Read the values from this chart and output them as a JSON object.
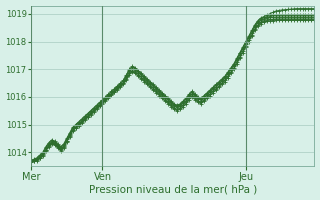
{
  "xlabel": "Pression niveau de la mer( hPa )",
  "bg_color": "#d8f0e8",
  "grid_color": "#a8ccc0",
  "line_color": "#2d6e2d",
  "tick_color": "#2d6e2d",
  "label_color": "#2d6e2d",
  "vline_color": "#5a8a6a",
  "ylim": [
    1013.5,
    1019.3
  ],
  "yticks": [
    1014,
    1015,
    1016,
    1017,
    1018,
    1019
  ],
  "day_labels": [
    "Mer",
    "Ven",
    "Jeu"
  ],
  "day_positions": [
    0,
    24,
    72
  ],
  "total_points": 96,
  "series": [
    [
      1013.7,
      1013.75,
      1013.8,
      1013.9,
      1014.0,
      1014.2,
      1014.35,
      1014.45,
      1014.4,
      1014.3,
      1014.2,
      1014.3,
      1014.5,
      1014.7,
      1014.9,
      1015.0,
      1015.1,
      1015.2,
      1015.3,
      1015.4,
      1015.5,
      1015.6,
      1015.7,
      1015.8,
      1015.9,
      1016.0,
      1016.1,
      1016.2,
      1016.3,
      1016.4,
      1016.5,
      1016.6,
      1016.8,
      1017.0,
      1017.1,
      1017.05,
      1016.95,
      1016.85,
      1016.75,
      1016.65,
      1016.55,
      1016.45,
      1016.35,
      1016.25,
      1016.15,
      1016.05,
      1015.95,
      1015.85,
      1015.75,
      1015.7,
      1015.75,
      1015.85,
      1015.95,
      1016.1,
      1016.2,
      1016.1,
      1016.0,
      1015.95,
      1016.05,
      1016.15,
      1016.25,
      1016.35,
      1016.45,
      1016.55,
      1016.65,
      1016.75,
      1016.9,
      1017.05,
      1017.2,
      1017.4,
      1017.6,
      1017.8,
      1018.0,
      1018.2,
      1018.4,
      1018.6,
      1018.75,
      1018.85,
      1018.9,
      1018.95,
      1019.0,
      1019.05,
      1019.1,
      1019.12,
      1019.14,
      1019.15,
      1019.16,
      1019.17,
      1019.18,
      1019.19,
      1019.19,
      1019.19,
      1019.19,
      1019.19,
      1019.19,
      1019.19
    ],
    [
      1013.7,
      1013.73,
      1013.77,
      1013.87,
      1013.97,
      1014.15,
      1014.3,
      1014.42,
      1014.37,
      1014.27,
      1014.17,
      1014.27,
      1014.47,
      1014.67,
      1014.87,
      1014.97,
      1015.07,
      1015.17,
      1015.27,
      1015.37,
      1015.47,
      1015.57,
      1015.67,
      1015.77,
      1015.87,
      1015.97,
      1016.07,
      1016.17,
      1016.27,
      1016.37,
      1016.47,
      1016.57,
      1016.77,
      1016.97,
      1017.07,
      1017.02,
      1016.92,
      1016.82,
      1016.72,
      1016.62,
      1016.52,
      1016.42,
      1016.32,
      1016.22,
      1016.12,
      1016.02,
      1015.92,
      1015.82,
      1015.72,
      1015.67,
      1015.72,
      1015.82,
      1015.92,
      1016.07,
      1016.17,
      1016.07,
      1015.97,
      1015.92,
      1016.02,
      1016.12,
      1016.22,
      1016.32,
      1016.42,
      1016.52,
      1016.62,
      1016.72,
      1016.87,
      1017.02,
      1017.17,
      1017.37,
      1017.57,
      1017.77,
      1017.97,
      1018.17,
      1018.37,
      1018.57,
      1018.72,
      1018.82,
      1018.87,
      1018.9,
      1018.93,
      1018.95,
      1018.96,
      1018.97,
      1018.97,
      1018.97,
      1018.97,
      1018.97,
      1018.97,
      1018.97,
      1018.97,
      1018.97,
      1018.97,
      1018.97,
      1018.97,
      1018.97
    ],
    [
      1013.68,
      1013.71,
      1013.75,
      1013.83,
      1013.93,
      1014.1,
      1014.25,
      1014.37,
      1014.32,
      1014.22,
      1014.12,
      1014.22,
      1014.42,
      1014.62,
      1014.82,
      1014.92,
      1015.02,
      1015.12,
      1015.22,
      1015.32,
      1015.42,
      1015.52,
      1015.62,
      1015.72,
      1015.82,
      1015.92,
      1016.02,
      1016.12,
      1016.22,
      1016.32,
      1016.42,
      1016.52,
      1016.72,
      1016.92,
      1017.02,
      1016.97,
      1016.87,
      1016.77,
      1016.67,
      1016.57,
      1016.47,
      1016.37,
      1016.27,
      1016.17,
      1016.07,
      1015.97,
      1015.87,
      1015.77,
      1015.67,
      1015.62,
      1015.67,
      1015.77,
      1015.87,
      1016.02,
      1016.12,
      1016.02,
      1015.92,
      1015.87,
      1015.97,
      1016.07,
      1016.17,
      1016.27,
      1016.37,
      1016.47,
      1016.57,
      1016.67,
      1016.82,
      1016.97,
      1017.12,
      1017.32,
      1017.52,
      1017.72,
      1017.92,
      1018.12,
      1018.32,
      1018.52,
      1018.67,
      1018.77,
      1018.82,
      1018.85,
      1018.87,
      1018.88,
      1018.89,
      1018.89,
      1018.89,
      1018.89,
      1018.89,
      1018.89,
      1018.89,
      1018.89,
      1018.89,
      1018.89,
      1018.89,
      1018.89,
      1018.89,
      1018.89
    ],
    [
      1013.65,
      1013.68,
      1013.72,
      1013.8,
      1013.9,
      1014.07,
      1014.22,
      1014.34,
      1014.29,
      1014.19,
      1014.09,
      1014.19,
      1014.39,
      1014.59,
      1014.79,
      1014.89,
      1014.99,
      1015.09,
      1015.19,
      1015.29,
      1015.39,
      1015.49,
      1015.59,
      1015.69,
      1015.79,
      1015.89,
      1015.99,
      1016.09,
      1016.19,
      1016.29,
      1016.39,
      1016.49,
      1016.65,
      1016.85,
      1016.95,
      1016.9,
      1016.8,
      1016.7,
      1016.6,
      1016.5,
      1016.4,
      1016.3,
      1016.2,
      1016.1,
      1016.0,
      1015.9,
      1015.8,
      1015.7,
      1015.6,
      1015.55,
      1015.6,
      1015.7,
      1015.8,
      1015.95,
      1016.05,
      1015.95,
      1015.85,
      1015.8,
      1015.9,
      1016.0,
      1016.1,
      1016.2,
      1016.3,
      1016.4,
      1016.5,
      1016.6,
      1016.75,
      1016.9,
      1017.05,
      1017.25,
      1017.45,
      1017.65,
      1017.85,
      1018.05,
      1018.25,
      1018.45,
      1018.6,
      1018.7,
      1018.75,
      1018.78,
      1018.8,
      1018.81,
      1018.82,
      1018.82,
      1018.82,
      1018.82,
      1018.82,
      1018.82,
      1018.82,
      1018.82,
      1018.82,
      1018.82,
      1018.82,
      1018.82,
      1018.82,
      1018.82
    ],
    [
      1013.65,
      1013.67,
      1013.7,
      1013.78,
      1013.87,
      1014.04,
      1014.19,
      1014.31,
      1014.26,
      1014.16,
      1014.06,
      1014.16,
      1014.36,
      1014.56,
      1014.76,
      1014.86,
      1014.96,
      1015.06,
      1015.16,
      1015.26,
      1015.36,
      1015.46,
      1015.56,
      1015.66,
      1015.76,
      1015.86,
      1015.96,
      1016.06,
      1016.16,
      1016.26,
      1016.36,
      1016.46,
      1016.6,
      1016.8,
      1016.9,
      1016.85,
      1016.75,
      1016.65,
      1016.55,
      1016.45,
      1016.35,
      1016.25,
      1016.15,
      1016.05,
      1015.95,
      1015.85,
      1015.75,
      1015.65,
      1015.55,
      1015.5,
      1015.55,
      1015.65,
      1015.75,
      1015.9,
      1016.0,
      1015.9,
      1015.8,
      1015.75,
      1015.85,
      1015.95,
      1016.05,
      1016.15,
      1016.25,
      1016.35,
      1016.45,
      1016.55,
      1016.7,
      1016.85,
      1017.0,
      1017.2,
      1017.4,
      1017.6,
      1017.8,
      1018.0,
      1018.2,
      1018.4,
      1018.55,
      1018.65,
      1018.7,
      1018.73,
      1018.75,
      1018.76,
      1018.77,
      1018.77,
      1018.77,
      1018.77,
      1018.77,
      1018.77,
      1018.77,
      1018.77,
      1018.77,
      1018.77,
      1018.77,
      1018.77,
      1018.77,
      1018.77
    ]
  ]
}
